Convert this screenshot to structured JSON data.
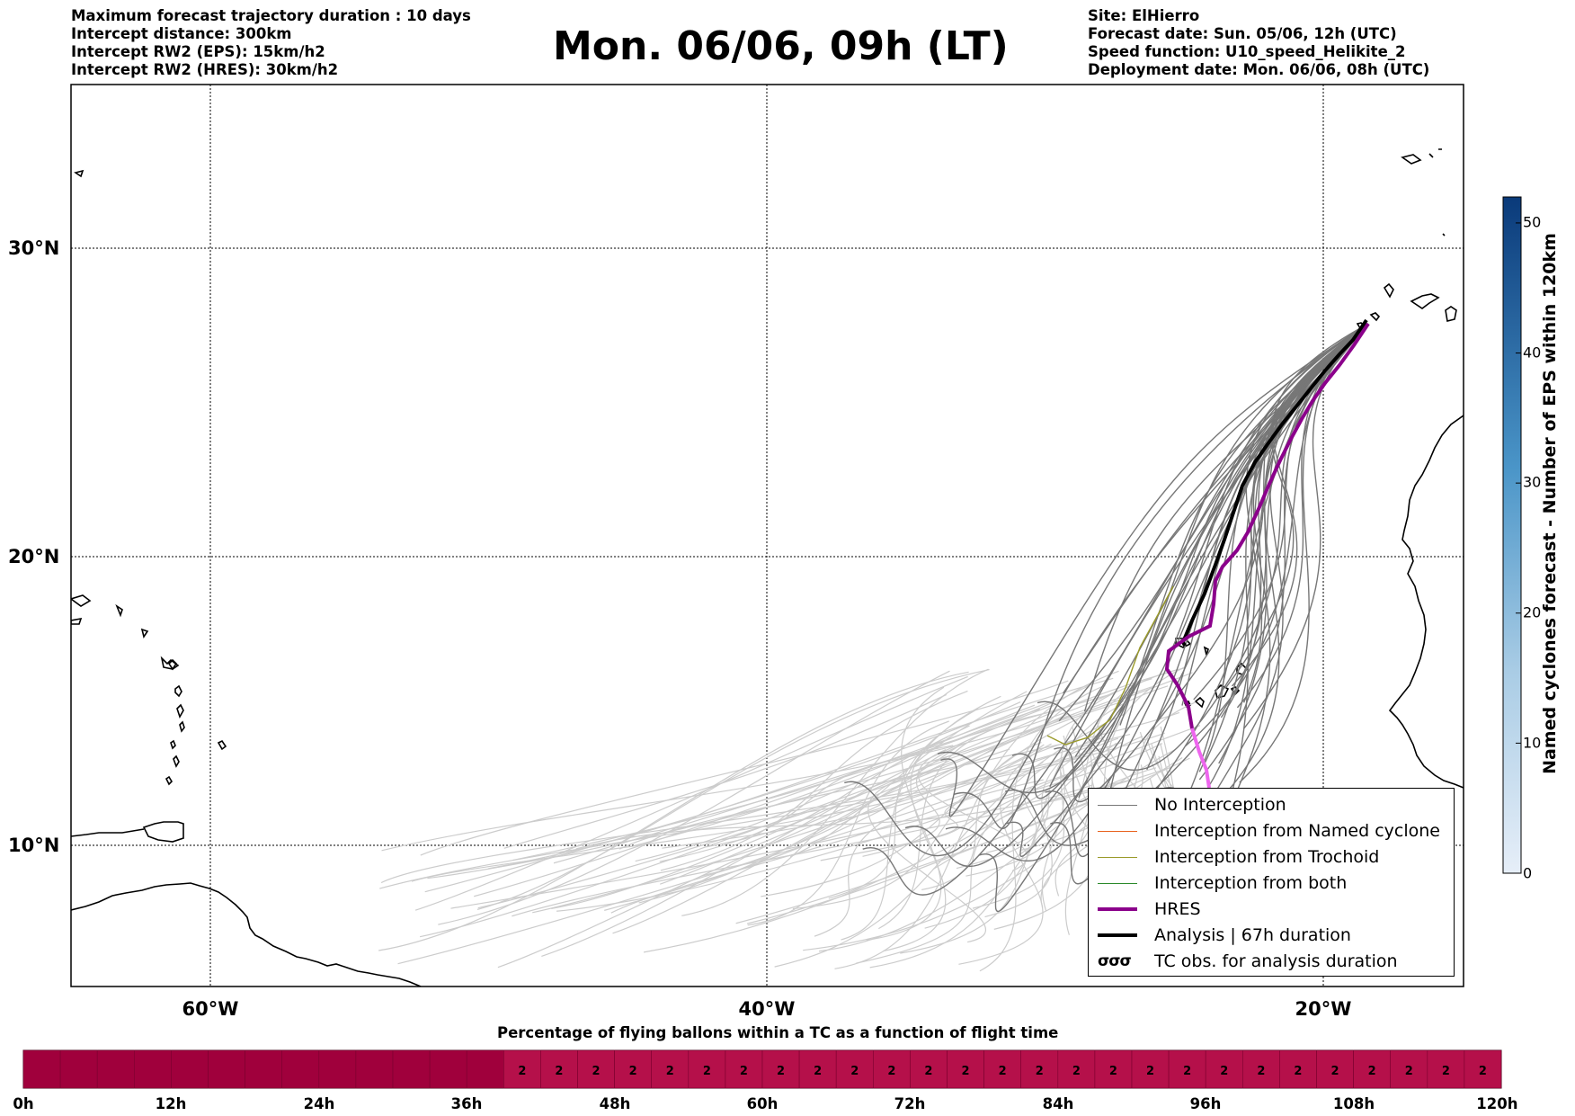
{
  "header": {
    "left_lines": [
      "Maximum forecast trajectory duration : 10 days",
      "Intercept distance: 300km",
      "Intercept RW2 (EPS):  15km/h2",
      "Intercept RW2 (HRES): 30km/h2"
    ],
    "title": "Mon. 06/06, 09h (LT)",
    "right_lines": [
      "Site: ElHierro",
      "Forecast date: Sun. 05/06, 12h (UTC)",
      "Speed function: U10_speed_Helikite_2",
      "Deployment date: Mon. 06/06, 08h (UTC)"
    ]
  },
  "map": {
    "lat_labels": [
      "30°N",
      "20°N",
      "10°N"
    ],
    "lon_labels": [
      "60°W",
      "40°W",
      "20°W"
    ],
    "lat_range": [
      5.5,
      34.8
    ],
    "lon_range": [
      -65,
      -15
    ],
    "gridline_style": "dotted",
    "colors": {
      "no_interception": "#777777",
      "eps_faint": "#cccccc",
      "named_cyclone": "#e8601c",
      "trochoid": "#9a9a2a",
      "both": "#2a8a2a",
      "hres": "#8b008b",
      "hres_light": "#ee66ee",
      "analysis": "#000000"
    }
  },
  "legend": {
    "items": [
      {
        "label": "No Interception",
        "kind": "thin",
        "color": "#777777"
      },
      {
        "label": "Interception from Named cyclone",
        "kind": "thin",
        "color": "#e8601c"
      },
      {
        "label": "Interception from Trochoid",
        "kind": "thin",
        "color": "#9a9a2a"
      },
      {
        "label": "Interception from both",
        "kind": "thin",
        "color": "#2a8a2a"
      },
      {
        "label": "HRES",
        "kind": "thick",
        "color": "#8b008b"
      },
      {
        "label": "Analysis | 67h duration",
        "kind": "thick",
        "color": "#000000"
      },
      {
        "label": "TC obs. for analysis duration",
        "kind": "symbol",
        "symbol": "σσσ"
      }
    ]
  },
  "colorbar": {
    "title": "Named cyclones forecast - Number of EPS within 120km",
    "ticks": [
      "50",
      "40",
      "30",
      "20",
      "10",
      "0"
    ],
    "tick_values": [
      50,
      40,
      30,
      20,
      10,
      0
    ],
    "min": 0,
    "max": 52,
    "color_low": "#e6eef8",
    "color_high": "#0a3a7a"
  },
  "timeline": {
    "title": "Percentage of flying ballons within a TC as a function of flight time",
    "ticks": [
      "0h",
      "12h",
      "24h",
      "36h",
      "48h",
      "60h",
      "72h",
      "84h",
      "96h",
      "108h",
      "120h"
    ],
    "max_hours": 120,
    "cell_hours": 3,
    "value_start_hours": 39,
    "cell_value": "2",
    "color_empty": "#a0003c",
    "color_filled": "#b5104a"
  }
}
